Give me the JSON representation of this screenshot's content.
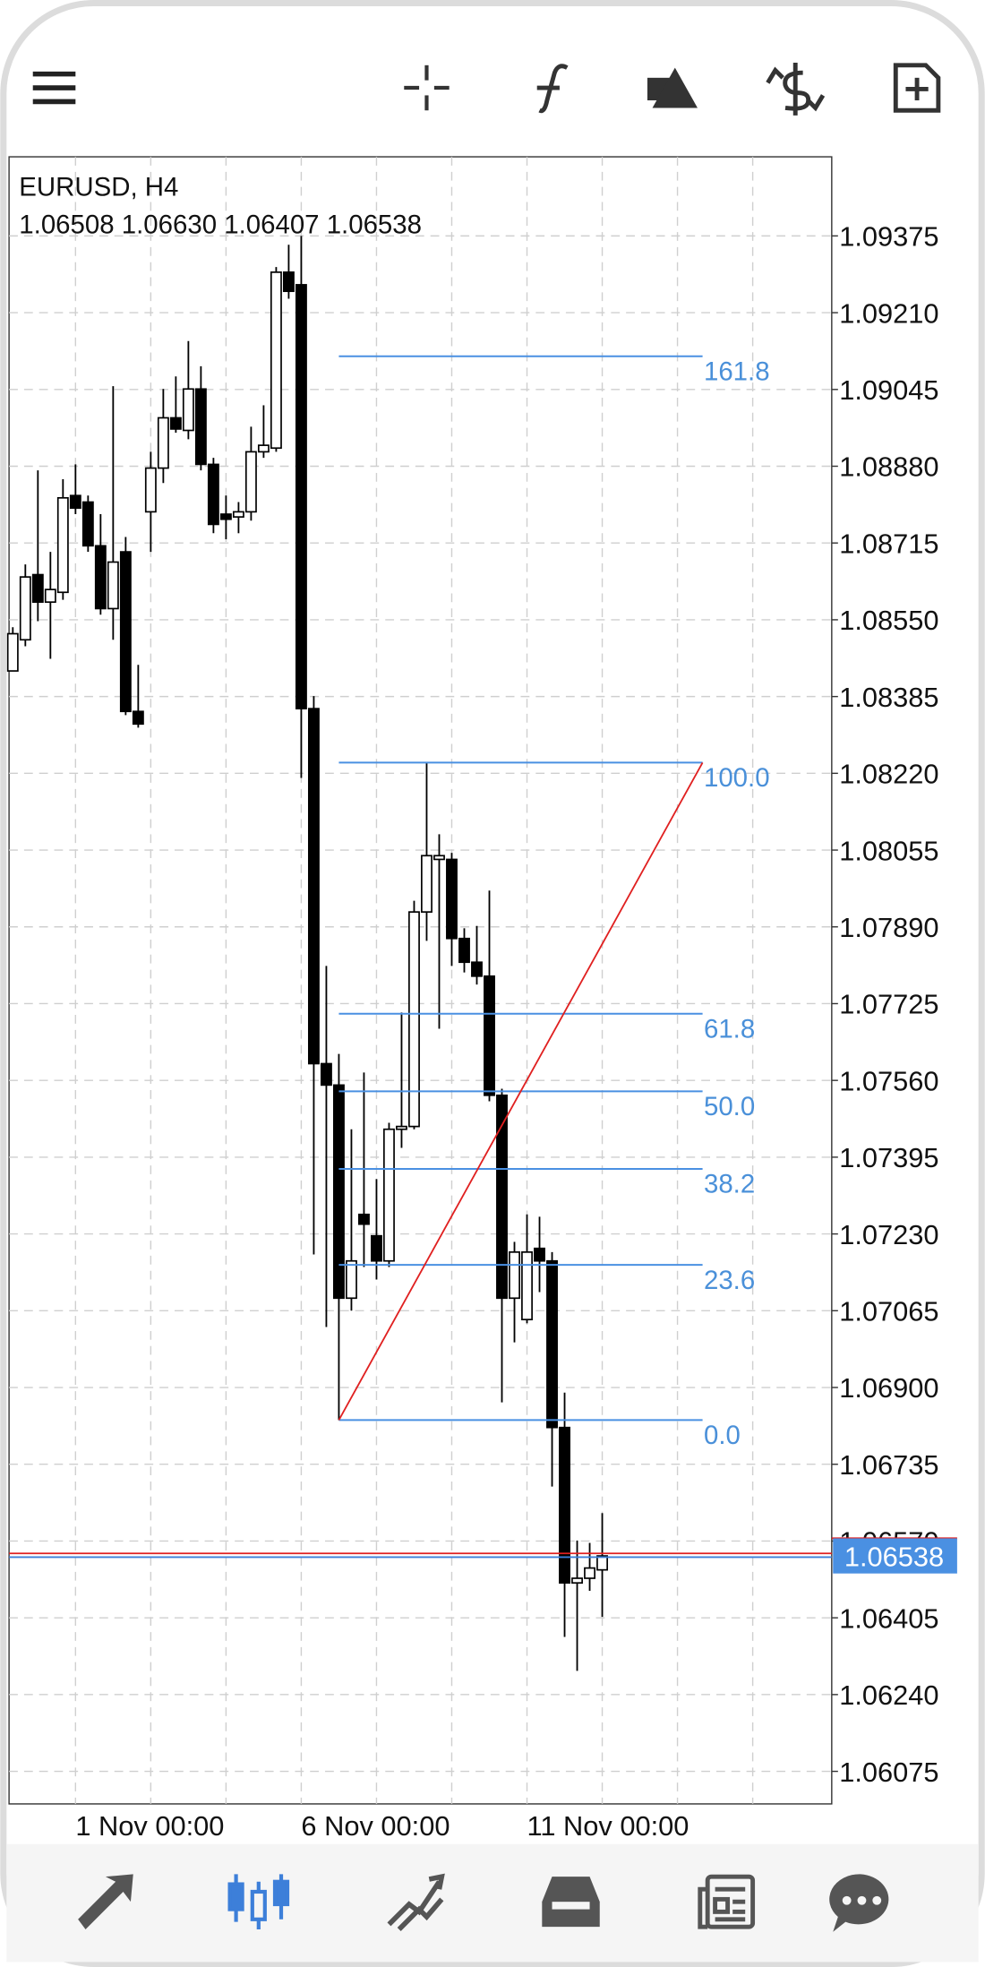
{
  "chart_data": {
    "type": "candlestick",
    "symbol": "EURUSD, H4",
    "quote": "1.06508 1.06630 1.06407 1.06538",
    "categories": [
      null,
      null,
      null,
      null,
      null,
      "1 Nov 00:00",
      null,
      null,
      null,
      null,
      null,
      null,
      null,
      null,
      null,
      null,
      null,
      null,
      null,
      null,
      null,
      null,
      null,
      "6 Nov 00:00",
      null,
      null,
      null,
      null,
      null,
      null,
      null,
      null,
      null,
      null,
      null,
      null,
      null,
      null,
      null,
      null,
      null,
      "11 Nov 00:00",
      null,
      null,
      null,
      null,
      null,
      null
    ],
    "candles": {
      "open": [
        1.0844,
        1.08507,
        1.08647,
        1.08588,
        1.08609,
        1.08817,
        1.08803,
        1.08709,
        1.08574,
        1.08696,
        1.08353,
        1.08782,
        1.08876,
        1.08984,
        1.08957,
        1.09046,
        1.08884,
        1.08777,
        1.08771,
        1.08782,
        1.08911,
        1.08919,
        1.09297,
        1.0927,
        1.08359,
        1.07596,
        1.0755,
        1.07092,
        1.07272,
        1.07226,
        1.07172,
        1.07455,
        1.07461,
        1.07922,
        1.08035,
        1.08035,
        1.07865,
        1.07814,
        1.07784,
        1.07528,
        1.07092,
        1.07046,
        1.07199,
        1.07172,
        1.06814,
        1.0648,
        1.0649,
        1.06508
      ],
      "high": [
        1.08534,
        1.08669,
        1.08871,
        1.08696,
        1.08852,
        1.08884,
        1.08817,
        1.08777,
        1.09052,
        1.08728,
        1.08453,
        1.08911,
        1.09046,
        1.09073,
        1.09149,
        1.09095,
        1.08898,
        1.08817,
        1.08803,
        1.08965,
        1.09011,
        1.09308,
        1.09356,
        1.09375,
        1.08386,
        1.07806,
        1.07617,
        1.07455,
        1.07577,
        1.07348,
        1.07469,
        1.07706,
        1.07946,
        1.08243,
        1.08089,
        1.08049,
        1.07887,
        1.07892,
        1.07968,
        1.07542,
        1.07213,
        1.07272,
        1.07267,
        1.07191,
        1.06889,
        1.06571,
        1.06566,
        1.0663
      ],
      "low": [
        1.0844,
        1.08493,
        1.08547,
        1.08466,
        1.08593,
        1.08777,
        1.08696,
        1.08561,
        1.08507,
        1.08345,
        1.08318,
        1.08696,
        1.08844,
        1.08952,
        1.08938,
        1.08871,
        1.08736,
        1.08723,
        1.08736,
        1.08763,
        1.08898,
        1.08911,
        1.0924,
        1.0821,
        1.07186,
        1.0703,
        1.0683,
        1.07065,
        1.07159,
        1.07132,
        1.07159,
        1.07415,
        1.07455,
        1.0786,
        1.07671,
        1.07806,
        1.07792,
        1.07766,
        1.07515,
        1.06868,
        1.06997,
        1.07038,
        1.07105,
        1.06687,
        1.06364,
        1.06291,
        1.06463,
        1.06407
      ],
      "close": [
        1.0852,
        1.08642,
        1.08588,
        1.08615,
        1.08812,
        1.0879,
        1.08709,
        1.08574,
        1.08674,
        1.08353,
        1.08326,
        1.08876,
        1.08984,
        1.0896,
        1.09046,
        1.08884,
        1.08755,
        1.08766,
        1.08782,
        1.08911,
        1.08925,
        1.09297,
        1.09256,
        1.08359,
        1.07596,
        1.0755,
        1.07092,
        1.07172,
        1.07251,
        1.07172,
        1.07455,
        1.07461,
        1.07922,
        1.08043,
        1.08043,
        1.07865,
        1.07814,
        1.07784,
        1.07528,
        1.07092,
        1.07191,
        1.07191,
        1.07172,
        1.06814,
        1.0648,
        1.0649,
        1.06512,
        1.06538
      ]
    },
    "xlim": [
      -0.3,
      65.3
    ],
    "xticks": [
      5,
      11,
      17,
      23,
      29,
      35,
      41,
      47,
      53,
      59
    ],
    "ylim": [
      1.06005,
      1.09545
    ],
    "yticks": [
      1.09375,
      {
        "value": 1.0921,
        "label": "1.09210"
      },
      1.09045,
      {
        "value": 1.0888,
        "label": "1.08880"
      },
      1.08715,
      {
        "value": 1.0855,
        "label": "1.08550"
      },
      1.08385,
      {
        "value": 1.0822,
        "label": "1.08220"
      },
      1.08055,
      {
        "value": 1.0789,
        "label": "1.07890"
      },
      1.07725,
      {
        "value": 1.0756,
        "label": "1.07560"
      },
      1.07395,
      {
        "value": 1.0723,
        "label": "1.07230"
      },
      1.07065,
      {
        "value": 1.069,
        "label": "1.06900"
      },
      1.06735,
      {
        "value": 1.0657,
        "label": "1.06570"
      },
      1.06405,
      {
        "value": 1.0624,
        "label": "1.06240"
      },
      1.06075
    ],
    "grid": true,
    "current_price": {
      "value": 1.06538,
      "label": "1.06538"
    },
    "fibo": {
      "start_price": 1.0683,
      "end_price": 1.08243,
      "x_start": 26,
      "x_end": 55,
      "levels": [
        {
          "value": 0,
          "label": "0.0"
        },
        23.6,
        38.2,
        {
          "value": 50,
          "label": "50.0"
        },
        61.8,
        {
          "value": 100,
          "label": "100.0"
        },
        161.8
      ]
    }
  }
}
